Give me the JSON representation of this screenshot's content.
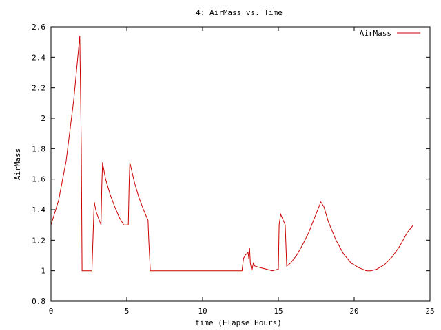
{
  "chart_data": {
    "type": "line",
    "title": "4: AirMass vs. Time",
    "xlabel": "time (Elapse Hours)",
    "ylabel": "AirMass",
    "xlim": [
      0,
      25
    ],
    "ylim": [
      0.8,
      2.6
    ],
    "xticks": [
      0,
      5,
      10,
      15,
      20,
      25
    ],
    "yticks": [
      0.8,
      1,
      1.2,
      1.4,
      1.6,
      1.8,
      2,
      2.2,
      2.4,
      2.6
    ],
    "xtick_labels": [
      "0",
      "5",
      "10",
      "15",
      "20",
      "25"
    ],
    "ytick_labels": [
      "0.8",
      "1",
      "1.2",
      "1.4",
      "1.6",
      "1.8",
      "2",
      "2.2",
      "2.4",
      "2.6"
    ],
    "grid": false,
    "legend_position": "top-right",
    "series": [
      {
        "name": "AirMass",
        "color": "#cc0000",
        "x": [
          0,
          0.5,
          1.0,
          1.5,
          1.9,
          2.0,
          2.05,
          2.7,
          2.8,
          2.85,
          2.95,
          3.0,
          3.3,
          3.35,
          3.4,
          3.45,
          3.6,
          3.9,
          4.2,
          4.5,
          4.8,
          5.1,
          5.15,
          5.2,
          5.5,
          5.8,
          6.1,
          6.4,
          6.45,
          6.55,
          6.6,
          12.6,
          12.7,
          12.8,
          13.0,
          13.05,
          13.1,
          13.15,
          13.25,
          13.35,
          13.45,
          13.8,
          14.2,
          14.6,
          15.0,
          15.05,
          15.15,
          15.45,
          15.55,
          15.8,
          16.2,
          16.6,
          17.0,
          17.4,
          17.8,
          18.0,
          18.3,
          18.8,
          19.3,
          19.8,
          20.3,
          20.8,
          21.1,
          21.5,
          22.0,
          22.5,
          23.0,
          23.5,
          23.9
        ],
        "y": [
          1.3,
          1.46,
          1.72,
          2.12,
          2.54,
          1.8,
          1.0,
          1.0,
          1.3,
          1.45,
          1.4,
          1.38,
          1.3,
          1.55,
          1.71,
          1.68,
          1.6,
          1.5,
          1.42,
          1.35,
          1.3,
          1.3,
          1.55,
          1.71,
          1.58,
          1.48,
          1.4,
          1.33,
          1.2,
          1.0,
          1.0,
          1.0,
          1.08,
          1.1,
          1.12,
          1.08,
          1.15,
          1.05,
          1.0,
          1.05,
          1.03,
          1.02,
          1.01,
          1.0,
          1.01,
          1.3,
          1.37,
          1.3,
          1.03,
          1.05,
          1.1,
          1.17,
          1.25,
          1.35,
          1.45,
          1.42,
          1.32,
          1.2,
          1.11,
          1.05,
          1.02,
          1.0,
          1.0,
          1.01,
          1.04,
          1.09,
          1.16,
          1.25,
          1.3
        ]
      }
    ]
  }
}
